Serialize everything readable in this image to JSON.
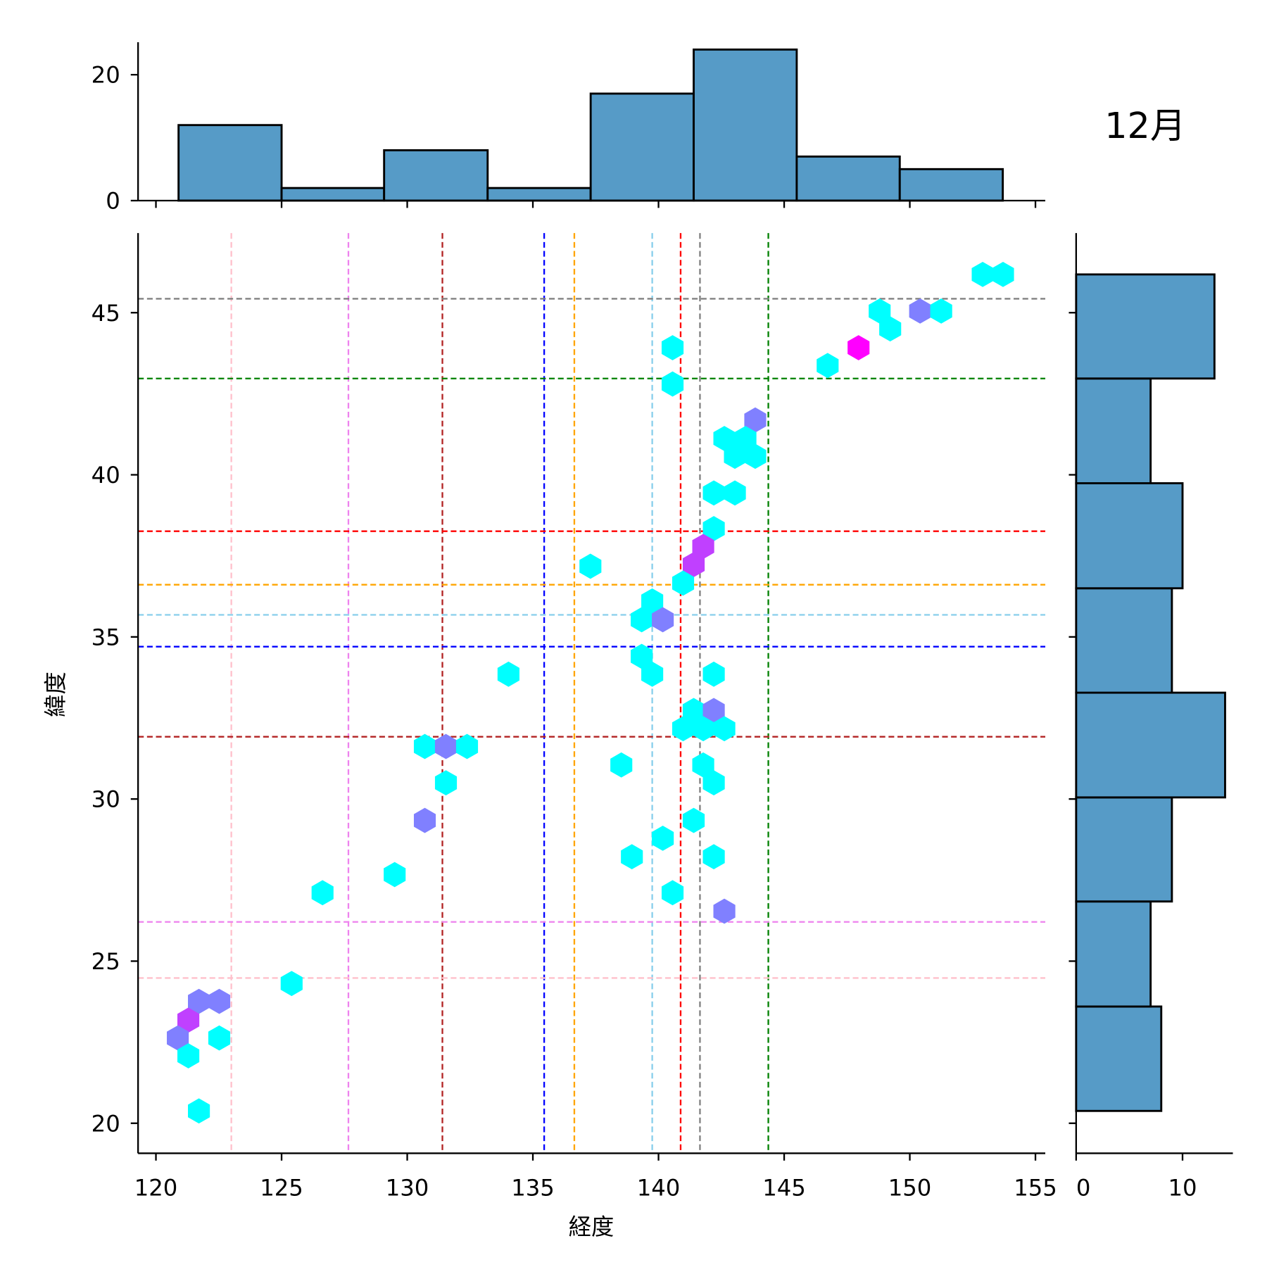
{
  "chart_data": {
    "type": "hexbin-jointplot",
    "title": "12月",
    "xlabel": "経度",
    "ylabel": "緯度",
    "xlim": [
      119.3,
      155.4
    ],
    "ylim": [
      19.1,
      47.5
    ],
    "xticks": [
      120,
      125,
      130,
      135,
      140,
      145,
      150,
      155
    ],
    "yticks": [
      20,
      25,
      30,
      35,
      40,
      45
    ],
    "count_colors": {
      "1": "#00ffff",
      "2": "#8080ff",
      "3": "#c040ff",
      "4": "#ff00ff"
    },
    "hexbins": [
      {
        "lon": 152.9,
        "lat": 46.18,
        "count": 1
      },
      {
        "lon": 153.71,
        "lat": 46.18,
        "count": 1
      },
      {
        "lon": 148.8,
        "lat": 45.05,
        "count": 1
      },
      {
        "lon": 150.41,
        "lat": 45.05,
        "count": 2
      },
      {
        "lon": 151.25,
        "lat": 45.05,
        "count": 1
      },
      {
        "lon": 149.22,
        "lat": 44.5,
        "count": 1
      },
      {
        "lon": 140.56,
        "lat": 43.92,
        "count": 1
      },
      {
        "lon": 147.96,
        "lat": 43.92,
        "count": 4
      },
      {
        "lon": 146.73,
        "lat": 43.37,
        "count": 1
      },
      {
        "lon": 140.56,
        "lat": 42.8,
        "count": 1
      },
      {
        "lon": 143.85,
        "lat": 41.69,
        "count": 2
      },
      {
        "lon": 142.62,
        "lat": 41.12,
        "count": 1
      },
      {
        "lon": 143.46,
        "lat": 41.12,
        "count": 1
      },
      {
        "lon": 143.04,
        "lat": 40.57,
        "count": 1
      },
      {
        "lon": 143.85,
        "lat": 40.57,
        "count": 1
      },
      {
        "lon": 142.2,
        "lat": 39.44,
        "count": 1
      },
      {
        "lon": 143.04,
        "lat": 39.44,
        "count": 1
      },
      {
        "lon": 142.2,
        "lat": 38.34,
        "count": 1
      },
      {
        "lon": 141.78,
        "lat": 37.79,
        "count": 3
      },
      {
        "lon": 141.4,
        "lat": 37.23,
        "count": 3
      },
      {
        "lon": 137.29,
        "lat": 37.18,
        "count": 1
      },
      {
        "lon": 140.98,
        "lat": 36.66,
        "count": 1
      },
      {
        "lon": 139.75,
        "lat": 36.11,
        "count": 1
      },
      {
        "lon": 139.33,
        "lat": 35.53,
        "count": 1
      },
      {
        "lon": 140.17,
        "lat": 35.53,
        "count": 2
      },
      {
        "lon": 139.33,
        "lat": 34.4,
        "count": 1
      },
      {
        "lon": 139.75,
        "lat": 33.85,
        "count": 1
      },
      {
        "lon": 134.03,
        "lat": 33.85,
        "count": 1
      },
      {
        "lon": 142.2,
        "lat": 33.85,
        "count": 1
      },
      {
        "lon": 141.4,
        "lat": 32.73,
        "count": 1
      },
      {
        "lon": 142.2,
        "lat": 32.73,
        "count": 2
      },
      {
        "lon": 140.98,
        "lat": 32.17,
        "count": 1
      },
      {
        "lon": 141.78,
        "lat": 32.17,
        "count": 1
      },
      {
        "lon": 142.62,
        "lat": 32.17,
        "count": 1
      },
      {
        "lon": 130.7,
        "lat": 31.62,
        "count": 1
      },
      {
        "lon": 131.54,
        "lat": 31.62,
        "count": 2
      },
      {
        "lon": 132.38,
        "lat": 31.62,
        "count": 1
      },
      {
        "lon": 138.52,
        "lat": 31.05,
        "count": 1
      },
      {
        "lon": 141.78,
        "lat": 31.05,
        "count": 1
      },
      {
        "lon": 131.54,
        "lat": 30.5,
        "count": 1
      },
      {
        "lon": 142.2,
        "lat": 30.5,
        "count": 1
      },
      {
        "lon": 130.7,
        "lat": 29.34,
        "count": 2
      },
      {
        "lon": 141.4,
        "lat": 29.34,
        "count": 1
      },
      {
        "lon": 140.17,
        "lat": 28.79,
        "count": 1
      },
      {
        "lon": 138.94,
        "lat": 28.22,
        "count": 1
      },
      {
        "lon": 142.2,
        "lat": 28.22,
        "count": 1
      },
      {
        "lon": 129.5,
        "lat": 27.67,
        "count": 1
      },
      {
        "lon": 126.63,
        "lat": 27.11,
        "count": 1
      },
      {
        "lon": 140.56,
        "lat": 27.11,
        "count": 1
      },
      {
        "lon": 142.62,
        "lat": 26.54,
        "count": 2
      },
      {
        "lon": 125.4,
        "lat": 24.31,
        "count": 1
      },
      {
        "lon": 121.71,
        "lat": 23.76,
        "count": 2
      },
      {
        "lon": 122.52,
        "lat": 23.76,
        "count": 2
      },
      {
        "lon": 121.29,
        "lat": 23.18,
        "count": 3
      },
      {
        "lon": 120.87,
        "lat": 22.63,
        "count": 2
      },
      {
        "lon": 122.52,
        "lat": 22.63,
        "count": 1
      },
      {
        "lon": 121.29,
        "lat": 22.08,
        "count": 1
      },
      {
        "lon": 121.71,
        "lat": 20.38,
        "count": 1
      }
    ],
    "vlines": [
      {
        "lon": 123.0,
        "color": "#ffc0cb"
      },
      {
        "lon": 127.66,
        "color": "#ee82ee"
      },
      {
        "lon": 131.4,
        "color": "#b22222"
      },
      {
        "lon": 135.45,
        "color": "#0000ff"
      },
      {
        "lon": 136.65,
        "color": "#ffa500"
      },
      {
        "lon": 139.75,
        "color": "#87ceeb"
      },
      {
        "lon": 140.88,
        "color": "#ff0000"
      },
      {
        "lon": 141.65,
        "color": "#808080"
      },
      {
        "lon": 144.37,
        "color": "#008000"
      }
    ],
    "hlines": [
      {
        "lat": 45.43,
        "color": "#808080"
      },
      {
        "lat": 42.97,
        "color": "#008000"
      },
      {
        "lat": 38.26,
        "color": "#ff0000"
      },
      {
        "lat": 36.61,
        "color": "#ffa500"
      },
      {
        "lat": 35.68,
        "color": "#87ceeb"
      },
      {
        "lat": 34.7,
        "color": "#0000ff"
      },
      {
        "lat": 31.92,
        "color": "#b22222"
      },
      {
        "lat": 26.21,
        "color": "#ee82ee"
      },
      {
        "lat": 24.48,
        "color": "#ffc0cb"
      }
    ],
    "top_hist": {
      "edges": [
        120.9,
        125.0,
        129.08,
        133.2,
        137.3,
        141.4,
        145.5,
        149.6,
        153.7
      ],
      "counts": [
        12,
        2,
        8,
        2,
        17,
        24,
        7,
        5
      ],
      "yticks": [
        0,
        20
      ],
      "ylim": [
        0,
        25.5
      ]
    },
    "right_hist": {
      "edges": [
        20.38,
        23.6,
        26.84,
        30.05,
        33.28,
        36.5,
        39.74,
        42.97,
        46.18
      ],
      "counts": [
        8,
        7,
        9,
        14,
        9,
        10,
        7,
        13
      ],
      "xticks": [
        0,
        10
      ],
      "xlim": [
        0,
        14.8
      ]
    },
    "bar_color": "#569bc7"
  }
}
